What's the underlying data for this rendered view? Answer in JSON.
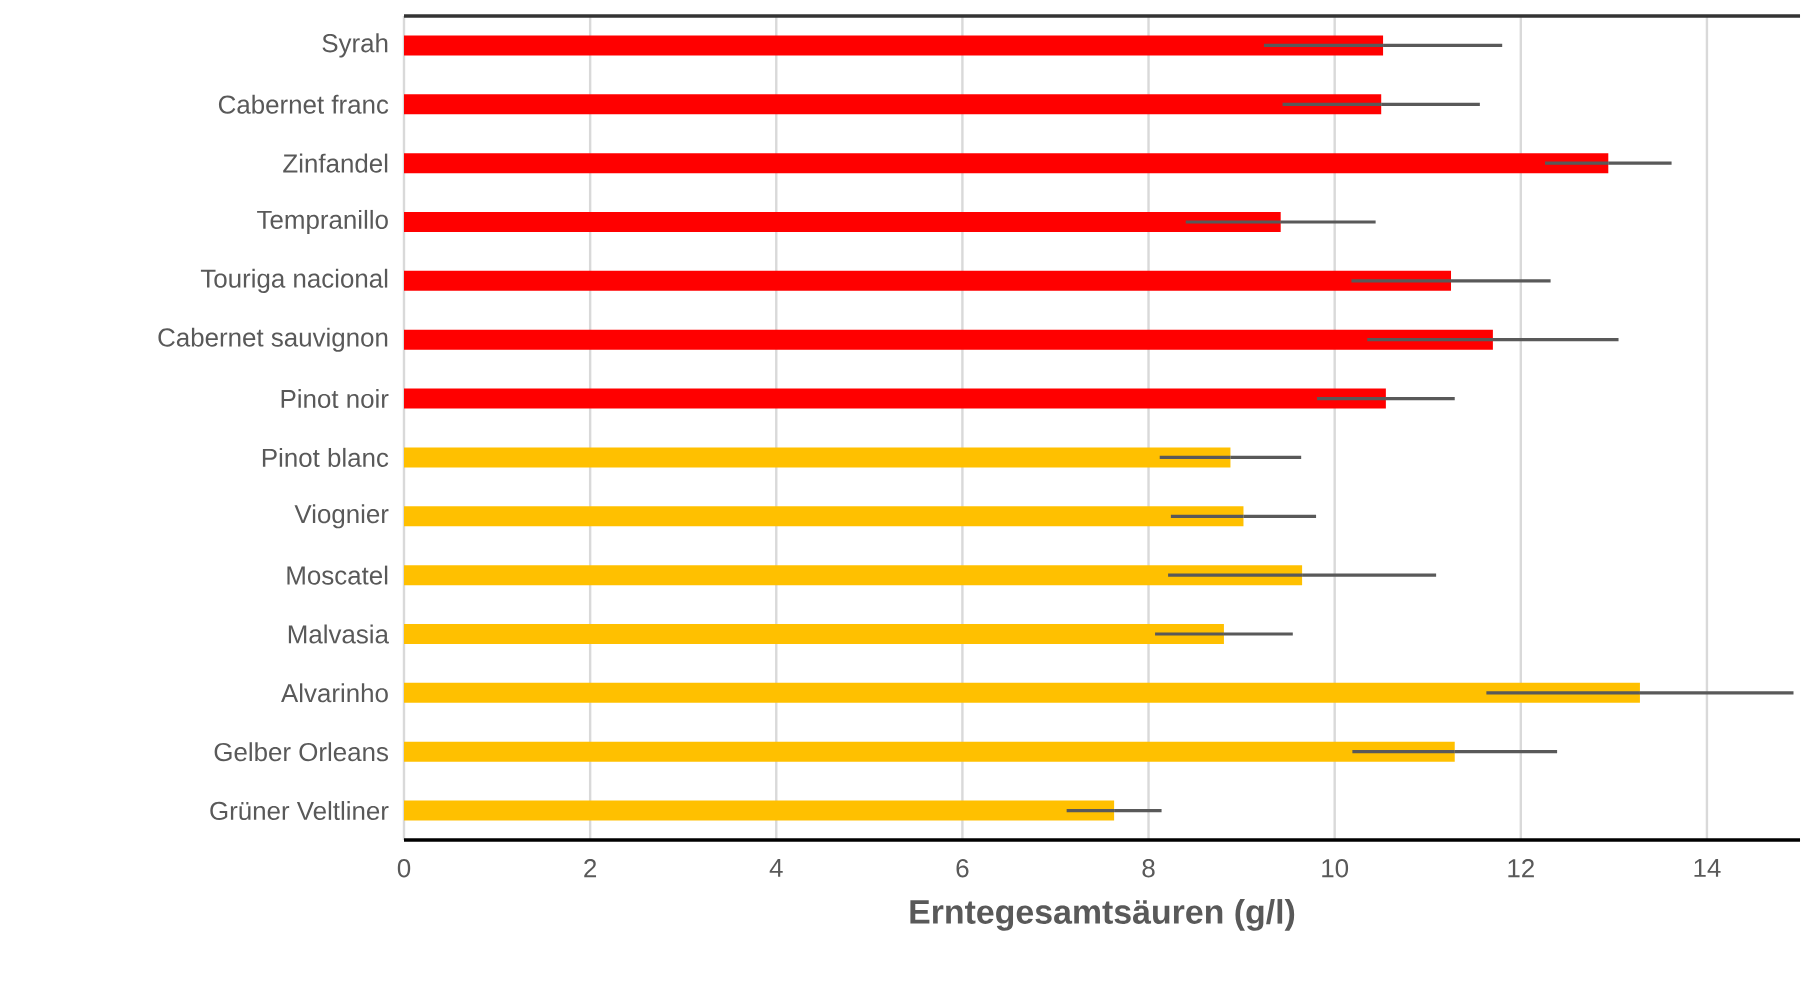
{
  "chart_data": {
    "type": "bar",
    "orientation": "horizontal",
    "categories": [
      "Syrah",
      "Cabernet franc",
      "Zinfandel",
      "Tempranillo",
      "Touriga nacional",
      "Cabernet sauvignon",
      "Pinot noir",
      "Pinot blanc",
      "Viognier",
      "Moscatel",
      "Malvasia",
      "Alvarinho",
      "Gelber Orleans",
      "Grüner Veltliner"
    ],
    "values": [
      10.52,
      10.5,
      12.94,
      9.42,
      11.25,
      11.7,
      10.55,
      8.88,
      9.02,
      9.65,
      8.81,
      13.28,
      11.29,
      7.63
    ],
    "errors": [
      1.28,
      1.06,
      0.68,
      1.02,
      1.07,
      1.35,
      0.74,
      0.76,
      0.78,
      1.44,
      0.74,
      1.65,
      1.1,
      0.51
    ],
    "colors": [
      "#ff0000",
      "#ff0000",
      "#ff0000",
      "#ff0000",
      "#ff0000",
      "#ff0000",
      "#ff0000",
      "#ffc000",
      "#ffc000",
      "#ffc000",
      "#ffc000",
      "#ffc000",
      "#ffc000",
      "#ffc000"
    ],
    "xlabel": "Erntegesamtsäuren (g/l)",
    "xlim": [
      0,
      15
    ],
    "xticks": [
      0,
      2,
      4,
      6,
      8,
      10,
      12,
      14
    ],
    "grid": "x"
  }
}
